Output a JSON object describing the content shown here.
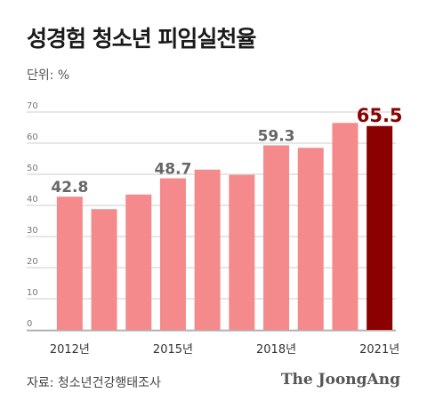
{
  "header": {
    "title": "성경험 청소년 피임실천율",
    "unit": "단위: %"
  },
  "footer": {
    "source": "자료: 청소년건강행태조사",
    "brand": "The JoongAng"
  },
  "colors": {
    "bar": "#f48a8c",
    "highlight": "#8b0000",
    "label": "#666666",
    "highlight_label": "#8b0000",
    "grid": "#cccccc"
  },
  "chart_data": {
    "type": "bar",
    "categories": [
      "2012",
      "2013",
      "2014",
      "2015",
      "2016",
      "2017",
      "2018",
      "2019",
      "2020",
      "2021"
    ],
    "values": [
      42.8,
      38.8,
      43.5,
      48.7,
      51.5,
      49.8,
      59.3,
      58.5,
      66.5,
      65.5
    ],
    "x_tick_labels": [
      "2012년",
      "",
      "",
      "2015년",
      "",
      "",
      "2018년",
      "",
      "",
      "2021년"
    ],
    "data_labels": [
      "42.8",
      "",
      "",
      "48.7",
      "",
      "",
      "59.3",
      "",
      "",
      "65.5"
    ],
    "highlight_index": 9,
    "ylim": [
      0,
      70
    ],
    "yticks": [
      0,
      10,
      20,
      30,
      40,
      50,
      60,
      70
    ],
    "grid": true,
    "title": "성경험 청소년 피임실천율",
    "xlabel": "",
    "ylabel": ""
  }
}
